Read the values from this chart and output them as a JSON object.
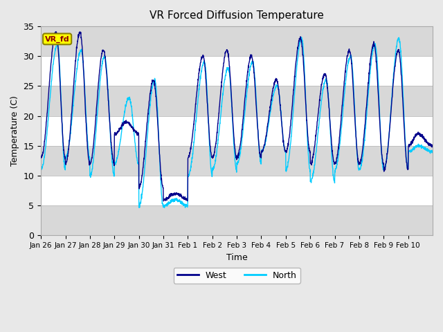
{
  "title": "VR Forced Diffusion Temperature",
  "ylabel": "Temperature (C)",
  "xlabel": "Time",
  "ylim": [
    0,
    35
  ],
  "west_color": "#00008B",
  "north_color": "#00CCFF",
  "legend_west": "West",
  "legend_north": "North",
  "label_text": "VR_fd",
  "label_bg": "#FFFF00",
  "label_fg": "#8B0000",
  "label_border": "#8B8000",
  "bg_color": "#E8E8E8",
  "plot_bg": "#FFFFFF",
  "band_color": "#D8D8D8",
  "xtick_labels": [
    "Jan 26",
    "Jan 27",
    "Jan 28",
    "Jan 29",
    "Jan 30",
    "Jan 31",
    "Feb 1",
    "Feb 2",
    "Feb 3",
    "Feb 4",
    "Feb 5",
    "Feb 6",
    "Feb 7",
    "Feb 8",
    "Feb 9",
    "Feb 10"
  ],
  "ytick_labels": [
    0,
    5,
    10,
    15,
    20,
    25,
    30,
    35
  ],
  "band_ranges": [
    [
      0,
      5
    ],
    [
      10,
      15
    ],
    [
      20,
      25
    ],
    [
      30,
      35
    ]
  ]
}
